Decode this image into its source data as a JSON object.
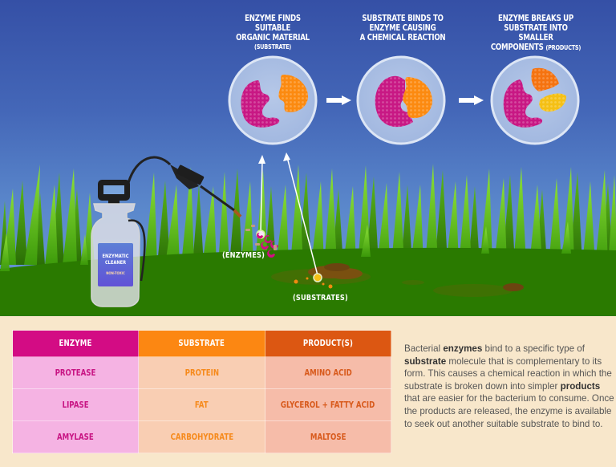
{
  "scene": {
    "steps": [
      {
        "title_lines": [
          "ENZYME FINDS SUITABLE",
          "ORGANIC MATERIAL"
        ],
        "subtitle": "(SUBSTRATE)"
      },
      {
        "title_lines": [
          "SUBSTRATE BINDS TO",
          "ENZYME CAUSING",
          "A CHEMICAL REACTION"
        ],
        "subtitle": ""
      },
      {
        "title_lines": [
          "ENZYME BREAKS UP",
          "SUBSTRATE INTO SMALLER",
          "COMPONENTS"
        ],
        "subtitle": "(PRODUCTS)"
      }
    ],
    "labels": {
      "enzymes": "(ENZYMES)",
      "substrates": "(SUBSTRATES)"
    },
    "bottle": {
      "label_line1": "ENZYMATIC",
      "label_line2": "CLEANER",
      "label_line3": "NON-TOXIC"
    },
    "icons": [
      "spray-bottle-icon",
      "enzyme-icon",
      "substrate-icon",
      "arrow-right-icon",
      "arrow-up-icon"
    ]
  },
  "table": {
    "headers": [
      "ENZYME",
      "SUBSTRATE",
      "PRODUCT(S)"
    ],
    "rows": [
      [
        "PROTEASE",
        "PROTEIN",
        "AMINO ACID"
      ],
      [
        "LIPASE",
        "FAT",
        "GLYCEROL + FATTY ACID"
      ],
      [
        "AMYLASE",
        "CARBOHYDRATE",
        "MALTOSE"
      ]
    ]
  },
  "description": {
    "segments": [
      {
        "text": "Bacterial ",
        "bold": false
      },
      {
        "text": "enzymes",
        "bold": true
      },
      {
        "text": " bind to a specific type of ",
        "bold": false
      },
      {
        "text": "substrate",
        "bold": true
      },
      {
        "text": " molecule that is complementary to its form.  This causes a chemical reaction in which the substrate is broken down into simpler ",
        "bold": false
      },
      {
        "text": "products",
        "bold": true
      },
      {
        "text": " that are easier for the bacterium to consume.  Once the products are released, the enzyme is available to seek out another suitable substrate to bind to.",
        "bold": false
      }
    ]
  },
  "colors": {
    "enzyme": "#d30c84",
    "substrate": "#fc8712",
    "product": "#dc5712",
    "product_yellow": "#f5c015",
    "sky_top": "#3550a6",
    "sky_bottom": "#6190d0",
    "ground": "#2a7a00",
    "panel_bg": "#f8e7cb"
  }
}
